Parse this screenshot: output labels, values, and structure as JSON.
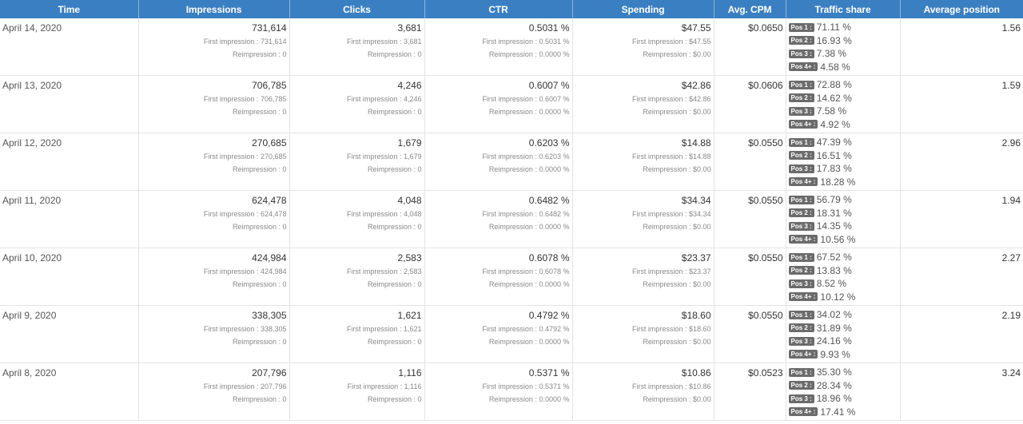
{
  "headers": [
    "Time",
    "Impressions",
    "Clicks",
    "CTR",
    "Spending",
    "Avg. CPM",
    "Traffic share",
    "Average position"
  ],
  "labels": {
    "first_impression": "First impression :",
    "reimpression": "Reimpression :",
    "pos": [
      "Pos 1 :",
      "Pos 2 :",
      "Pos 3 :",
      "Pos 4+ :"
    ]
  },
  "rows": [
    {
      "time": "April 14, 2020",
      "impressions": "731,614",
      "imp_first": "731,614",
      "imp_re": "0",
      "clicks": "3,681",
      "clk_first": "3,681",
      "clk_re": "0",
      "ctr": "0.5031 %",
      "ctr_first": "0.5031 %",
      "ctr_re": "0.0000 %",
      "spending": "$47.55",
      "sp_first": "$47.55",
      "sp_re": "$0.00",
      "cpm": "$0.0650",
      "traffic": [
        "71.11 %",
        "16.93 %",
        "7.38 %",
        "4.58 %"
      ],
      "position": "1.56"
    },
    {
      "time": "April 13, 2020",
      "impressions": "706,785",
      "imp_first": "706,785",
      "imp_re": "0",
      "clicks": "4,246",
      "clk_first": "4,246",
      "clk_re": "0",
      "ctr": "0.6007 %",
      "ctr_first": "0.6007 %",
      "ctr_re": "0.0000 %",
      "spending": "$42.86",
      "sp_first": "$42.86",
      "sp_re": "$0.00",
      "cpm": "$0.0606",
      "traffic": [
        "72.88 %",
        "14.62 %",
        "7.58 %",
        "4.92 %"
      ],
      "position": "1.59"
    },
    {
      "time": "April 12, 2020",
      "impressions": "270,685",
      "imp_first": "270,685",
      "imp_re": "0",
      "clicks": "1,679",
      "clk_first": "1,679",
      "clk_re": "0",
      "ctr": "0.6203 %",
      "ctr_first": "0.6203 %",
      "ctr_re": "0.0000 %",
      "spending": "$14.88",
      "sp_first": "$14.88",
      "sp_re": "$0.00",
      "cpm": "$0.0550",
      "traffic": [
        "47.39 %",
        "16.51 %",
        "17.83 %",
        "18.28 %"
      ],
      "position": "2.96"
    },
    {
      "time": "April 11, 2020",
      "impressions": "624,478",
      "imp_first": "624,478",
      "imp_re": "0",
      "clicks": "4,048",
      "clk_first": "4,048",
      "clk_re": "0",
      "ctr": "0.6482 %",
      "ctr_first": "0.6482 %",
      "ctr_re": "0.0000 %",
      "spending": "$34.34",
      "sp_first": "$34.34",
      "sp_re": "$0.00",
      "cpm": "$0.0550",
      "traffic": [
        "56.79 %",
        "18.31 %",
        "14.35 %",
        "10.56 %"
      ],
      "position": "1.94"
    },
    {
      "time": "April 10, 2020",
      "impressions": "424,984",
      "imp_first": "424,984",
      "imp_re": "0",
      "clicks": "2,583",
      "clk_first": "2,583",
      "clk_re": "0",
      "ctr": "0.6078 %",
      "ctr_first": "0.6078 %",
      "ctr_re": "0.0000 %",
      "spending": "$23.37",
      "sp_first": "$23.37",
      "sp_re": "$0.00",
      "cpm": "$0.0550",
      "traffic": [
        "67.52 %",
        "13.83 %",
        "8.52 %",
        "10.12 %"
      ],
      "position": "2.27"
    },
    {
      "time": "April 9, 2020",
      "impressions": "338,305",
      "imp_first": "338,305",
      "imp_re": "0",
      "clicks": "1,621",
      "clk_first": "1,621",
      "clk_re": "0",
      "ctr": "0.4792 %",
      "ctr_first": "0.4792 %",
      "ctr_re": "0.0000 %",
      "spending": "$18.60",
      "sp_first": "$18.60",
      "sp_re": "$0.00",
      "cpm": "$0.0550",
      "traffic": [
        "34.02 %",
        "31.89 %",
        "24.16 %",
        "9.93 %"
      ],
      "position": "2.19"
    },
    {
      "time": "April 8, 2020",
      "impressions": "207,796",
      "imp_first": "207,796",
      "imp_re": "0",
      "clicks": "1,116",
      "clk_first": "1,116",
      "clk_re": "0",
      "ctr": "0.5371 %",
      "ctr_first": "0.5371 %",
      "ctr_re": "0.0000 %",
      "spending": "$10.86",
      "sp_first": "$10.86",
      "sp_re": "$0.00",
      "cpm": "$0.0523",
      "traffic": [
        "35.30 %",
        "28.34 %",
        "18.96 %",
        "17.41 %"
      ],
      "position": "3.24"
    }
  ]
}
